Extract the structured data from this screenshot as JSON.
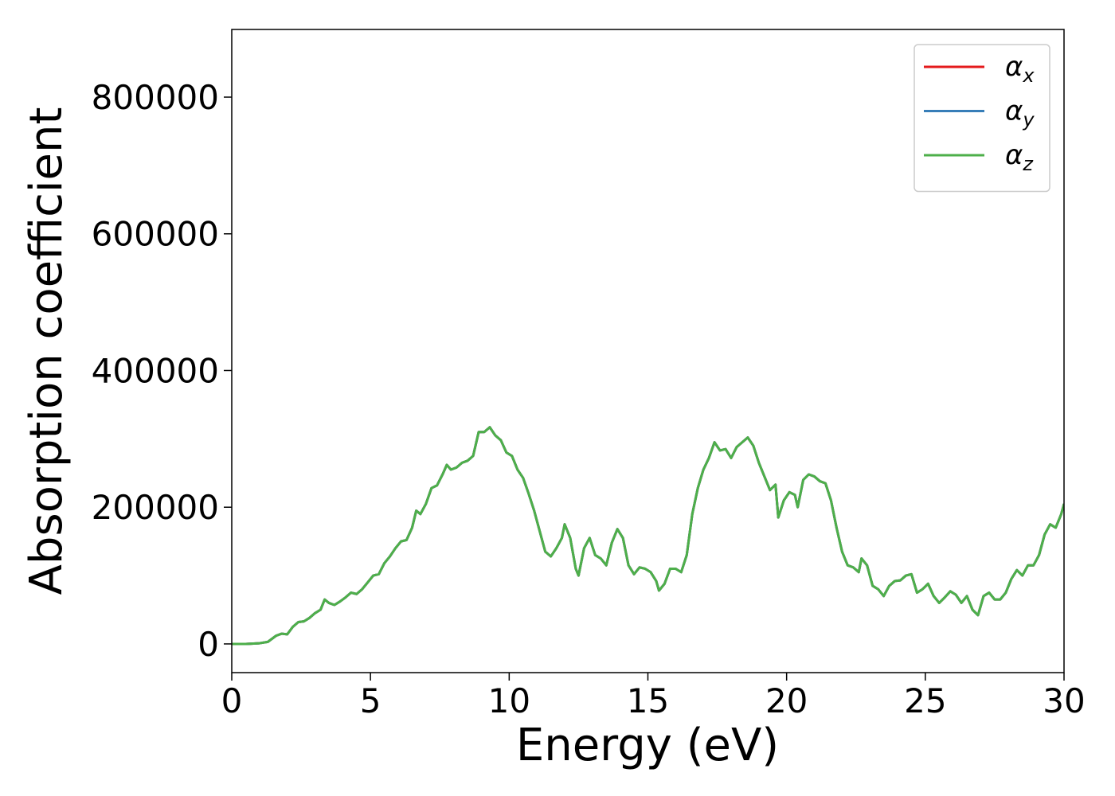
{
  "chart_data": {
    "type": "line",
    "xlabel": "Energy (eV)",
    "ylabel": "Absorption coefficient",
    "xlim": [
      0,
      30
    ],
    "xticks": [
      0,
      5,
      10,
      15,
      20,
      25,
      30
    ],
    "ylim": [
      -42000,
      899000
    ],
    "yticks": [
      0,
      200000,
      400000,
      600000,
      800000
    ],
    "legend": "upper right",
    "x": [
      0,
      0.5,
      1,
      1.3,
      1.6,
      1.8,
      2.0,
      2.2,
      2.4,
      2.6,
      2.8,
      3.0,
      3.2,
      3.35,
      3.5,
      3.7,
      3.9,
      4.1,
      4.3,
      4.5,
      4.7,
      4.9,
      5.1,
      5.3,
      5.5,
      5.7,
      5.9,
      6.1,
      6.3,
      6.5,
      6.65,
      6.8,
      7.0,
      7.2,
      7.4,
      7.6,
      7.75,
      7.9,
      8.1,
      8.3,
      8.5,
      8.7,
      8.9,
      9.1,
      9.3,
      9.5,
      9.7,
      9.9,
      10.1,
      10.3,
      10.5,
      10.7,
      10.9,
      11.1,
      11.3,
      11.5,
      11.7,
      11.9,
      12.0,
      12.2,
      12.4,
      12.5,
      12.7,
      12.9,
      13.1,
      13.3,
      13.5,
      13.7,
      13.9,
      14.1,
      14.3,
      14.5,
      14.7,
      14.9,
      15.1,
      15.3,
      15.4,
      15.6,
      15.8,
      16.0,
      16.2,
      16.4,
      16.6,
      16.8,
      17.0,
      17.2,
      17.4,
      17.6,
      17.8,
      18.0,
      18.2,
      18.4,
      18.6,
      18.8,
      19.0,
      19.2,
      19.4,
      19.6,
      19.7,
      19.9,
      20.1,
      20.3,
      20.4,
      20.6,
      20.8,
      21.0,
      21.2,
      21.4,
      21.6,
      21.8,
      22.0,
      22.2,
      22.4,
      22.6,
      22.7,
      22.9,
      23.1,
      23.3,
      23.5,
      23.7,
      23.9,
      24.1,
      24.3,
      24.5,
      24.7,
      24.9,
      25.1,
      25.3,
      25.5,
      25.7,
      25.9,
      26.1,
      26.3,
      26.5,
      26.7,
      26.9,
      27.1,
      27.3,
      27.5,
      27.7,
      27.9,
      28.1,
      28.3,
      28.5,
      28.7,
      28.9,
      29.1,
      29.3,
      29.5,
      29.7,
      29.9,
      30.0
    ],
    "series": [
      {
        "name": "αx",
        "color": "#e41a1c",
        "values": [
          0,
          0,
          1000,
          3000,
          12000,
          15000,
          14000,
          25000,
          32000,
          33000,
          38000,
          45000,
          50000,
          65000,
          60000,
          57000,
          62000,
          68000,
          75000,
          73000,
          80000,
          90000,
          100000,
          102000,
          118000,
          128000,
          140000,
          150000,
          152000,
          170000,
          195000,
          190000,
          205000,
          228000,
          232000,
          248000,
          262000,
          255000,
          258000,
          265000,
          268000,
          275000,
          310000,
          310000,
          317000,
          305000,
          298000,
          280000,
          275000,
          255000,
          243000,
          220000,
          195000,
          165000,
          135000,
          128000,
          140000,
          155000,
          175000,
          155000,
          110000,
          100000,
          140000,
          155000,
          130000,
          125000,
          115000,
          148000,
          168000,
          155000,
          115000,
          102000,
          112000,
          110000,
          105000,
          92000,
          78000,
          88000,
          110000,
          110000,
          105000,
          130000,
          190000,
          228000,
          255000,
          272000,
          295000,
          283000,
          285000,
          272000,
          288000,
          295000,
          302000,
          290000,
          265000,
          245000,
          225000,
          233000,
          185000,
          210000,
          222000,
          218000,
          200000,
          240000,
          248000,
          245000,
          238000,
          235000,
          210000,
          170000,
          135000,
          115000,
          112000,
          105000,
          125000,
          115000,
          85000,
          80000,
          70000,
          85000,
          92000,
          93000,
          100000,
          102000,
          75000,
          80000,
          88000,
          70000,
          60000,
          68000,
          77000,
          72000,
          60000,
          70000,
          50000,
          42000,
          70000,
          75000,
          65000,
          65000,
          75000,
          95000,
          108000,
          100000,
          115000,
          115000,
          130000,
          160000,
          175000,
          170000,
          190000,
          205000
        ]
      },
      {
        "name": "αy",
        "color": "#377eb8",
        "values": [
          0,
          0,
          1000,
          3000,
          12000,
          15000,
          14000,
          25000,
          32000,
          33000,
          38000,
          45000,
          50000,
          65000,
          60000,
          57000,
          62000,
          68000,
          75000,
          73000,
          80000,
          90000,
          100000,
          102000,
          118000,
          128000,
          140000,
          150000,
          152000,
          170000,
          195000,
          190000,
          205000,
          228000,
          232000,
          248000,
          262000,
          255000,
          258000,
          265000,
          268000,
          275000,
          310000,
          310000,
          317000,
          305000,
          298000,
          280000,
          275000,
          255000,
          243000,
          220000,
          195000,
          165000,
          135000,
          128000,
          140000,
          155000,
          175000,
          155000,
          110000,
          100000,
          140000,
          155000,
          130000,
          125000,
          115000,
          148000,
          168000,
          155000,
          115000,
          102000,
          112000,
          110000,
          105000,
          92000,
          78000,
          88000,
          110000,
          110000,
          105000,
          130000,
          190000,
          228000,
          255000,
          272000,
          295000,
          283000,
          285000,
          272000,
          288000,
          295000,
          302000,
          290000,
          265000,
          245000,
          225000,
          233000,
          185000,
          210000,
          222000,
          218000,
          200000,
          240000,
          248000,
          245000,
          238000,
          235000,
          210000,
          170000,
          135000,
          115000,
          112000,
          105000,
          125000,
          115000,
          85000,
          80000,
          70000,
          85000,
          92000,
          93000,
          100000,
          102000,
          75000,
          80000,
          88000,
          70000,
          60000,
          68000,
          77000,
          72000,
          60000,
          70000,
          50000,
          42000,
          70000,
          75000,
          65000,
          65000,
          75000,
          95000,
          108000,
          100000,
          115000,
          115000,
          130000,
          160000,
          175000,
          170000,
          190000,
          205000
        ]
      },
      {
        "name": "αz",
        "color": "#4daf4a",
        "values": [
          0,
          0,
          1000,
          3000,
          12000,
          15000,
          14000,
          25000,
          32000,
          33000,
          38000,
          45000,
          50000,
          65000,
          60000,
          57000,
          62000,
          68000,
          75000,
          73000,
          80000,
          90000,
          100000,
          102000,
          118000,
          128000,
          140000,
          150000,
          152000,
          170000,
          195000,
          190000,
          205000,
          228000,
          232000,
          248000,
          262000,
          255000,
          258000,
          265000,
          268000,
          275000,
          310000,
          310000,
          317000,
          305000,
          298000,
          280000,
          275000,
          255000,
          243000,
          220000,
          195000,
          165000,
          135000,
          128000,
          140000,
          155000,
          175000,
          155000,
          110000,
          100000,
          140000,
          155000,
          130000,
          125000,
          115000,
          148000,
          168000,
          155000,
          115000,
          102000,
          112000,
          110000,
          105000,
          92000,
          78000,
          88000,
          110000,
          110000,
          105000,
          130000,
          190000,
          228000,
          255000,
          272000,
          295000,
          283000,
          285000,
          272000,
          288000,
          295000,
          302000,
          290000,
          265000,
          245000,
          225000,
          233000,
          185000,
          210000,
          222000,
          218000,
          200000,
          240000,
          248000,
          245000,
          238000,
          235000,
          210000,
          170000,
          135000,
          115000,
          112000,
          105000,
          125000,
          115000,
          85000,
          80000,
          70000,
          85000,
          92000,
          93000,
          100000,
          102000,
          75000,
          80000,
          88000,
          70000,
          60000,
          68000,
          77000,
          72000,
          60000,
          70000,
          50000,
          42000,
          70000,
          75000,
          65000,
          65000,
          75000,
          95000,
          108000,
          100000,
          115000,
          115000,
          130000,
          160000,
          175000,
          170000,
          190000,
          205000
        ]
      }
    ]
  }
}
